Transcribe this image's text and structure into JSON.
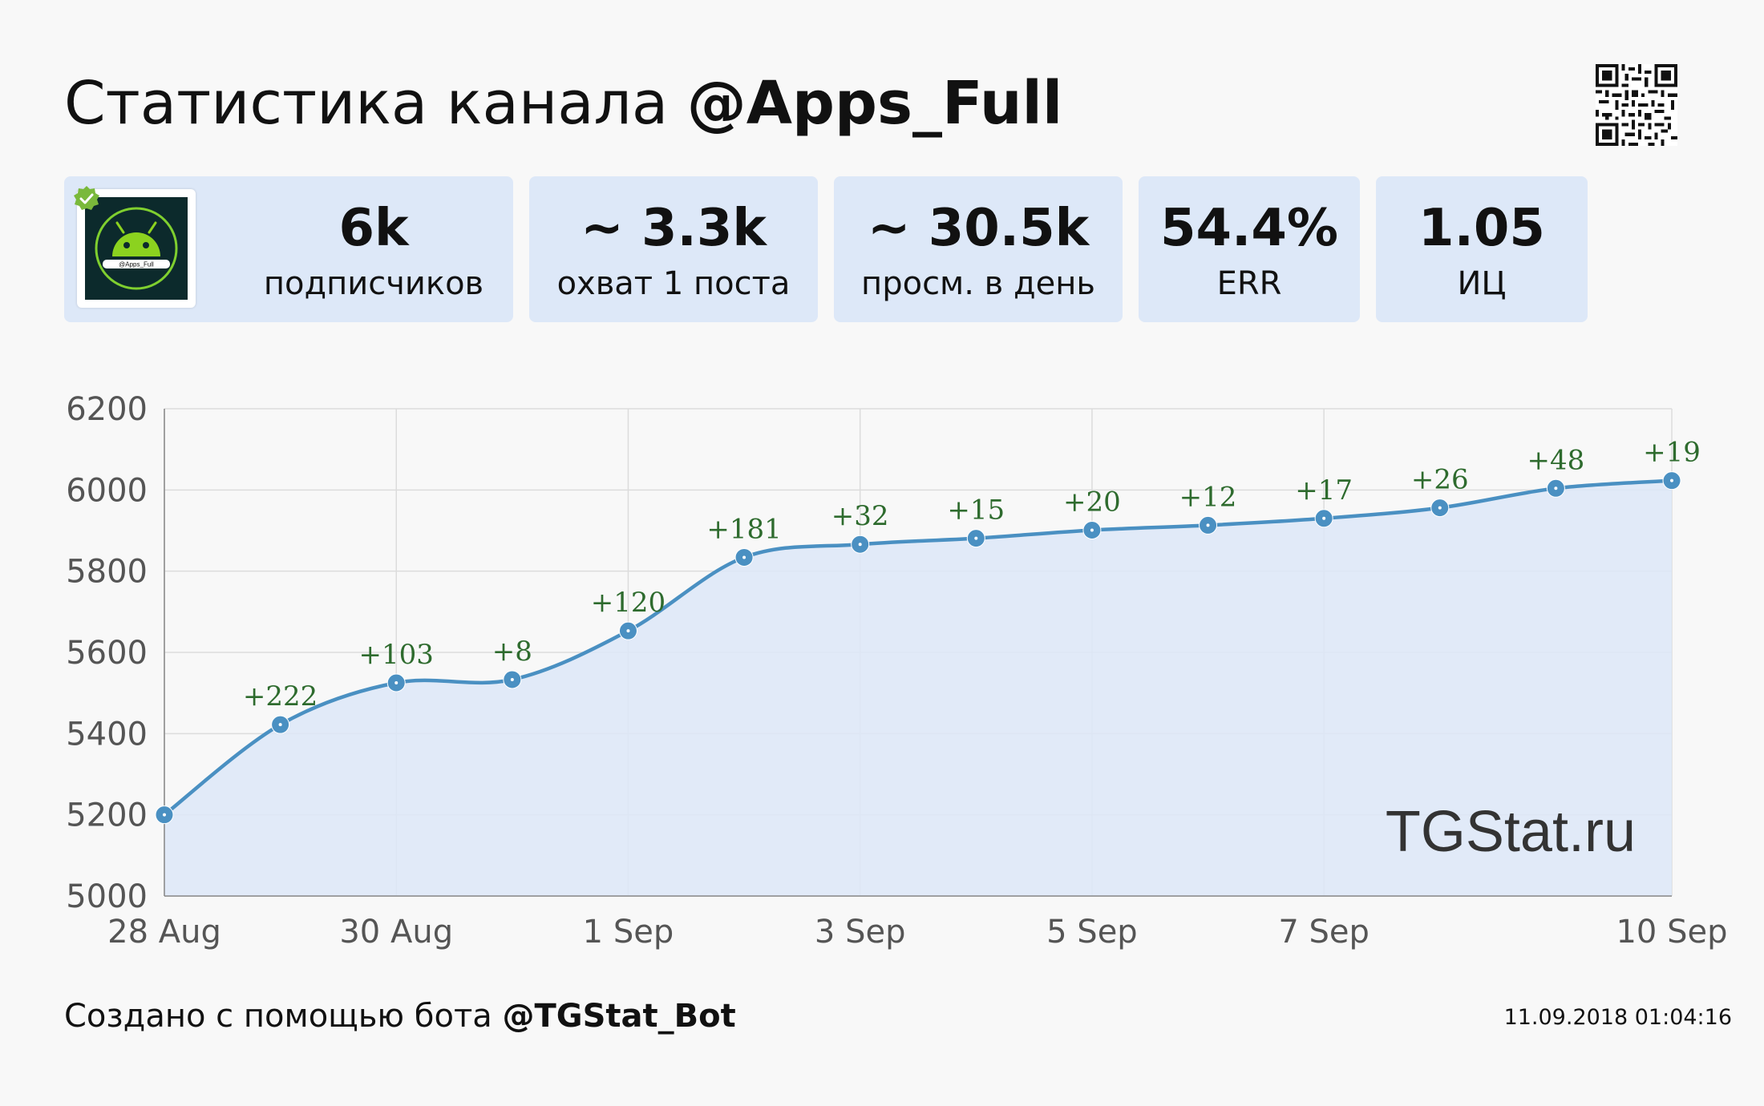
{
  "header": {
    "title_prefix": "Статистика канала",
    "channel": "@Apps_Full"
  },
  "avatar": {
    "text": "@Apps_Full",
    "verified": true
  },
  "stats": [
    {
      "value": "6k",
      "label": "подписчиков"
    },
    {
      "value": "~ 3.3k",
      "label": "охват 1 поста"
    },
    {
      "value": "~ 30.5k",
      "label": "просм. в день"
    },
    {
      "value": "54.4%",
      "label": "ERR"
    },
    {
      "value": "1.05",
      "label": "ИЦ"
    }
  ],
  "chart_data": {
    "type": "area",
    "title": "",
    "xlabel": "",
    "ylabel": "",
    "x": [
      "28 Aug",
      "29 Aug",
      "30 Aug",
      "31 Aug",
      "1 Sep",
      "2 Sep",
      "3 Sep",
      "4 Sep",
      "5 Sep",
      "6 Sep",
      "7 Sep",
      "8 Sep",
      "9 Sep",
      "10 Sep"
    ],
    "x_tick_labels": [
      "28 Aug",
      "30 Aug",
      "1 Sep",
      "3 Sep",
      "5 Sep",
      "7 Sep",
      "10 Sep"
    ],
    "values": [
      5200,
      5422,
      5525,
      5533,
      5653,
      5834,
      5866,
      5881,
      5901,
      5913,
      5930,
      5956,
      6004,
      6023
    ],
    "point_labels": [
      "",
      "+222",
      "+103",
      "+8",
      "+120",
      "+181",
      "+32",
      "+15",
      "+20",
      "+12",
      "+17",
      "+26",
      "+48",
      "+19"
    ],
    "ylim": [
      5000,
      6200
    ],
    "yticks": [
      5000,
      5200,
      5400,
      5600,
      5800,
      6000,
      6200
    ],
    "grid": true,
    "line_color": "#4a90c2",
    "fill_color": "#dde8f8",
    "label_color": "#2e6b2e",
    "watermark": "TGStat.ru"
  },
  "footer": {
    "created_prefix": "Создано с помощью бота",
    "bot": "@TGStat_Bot",
    "timestamp": "11.09.2018 01:04:16"
  }
}
